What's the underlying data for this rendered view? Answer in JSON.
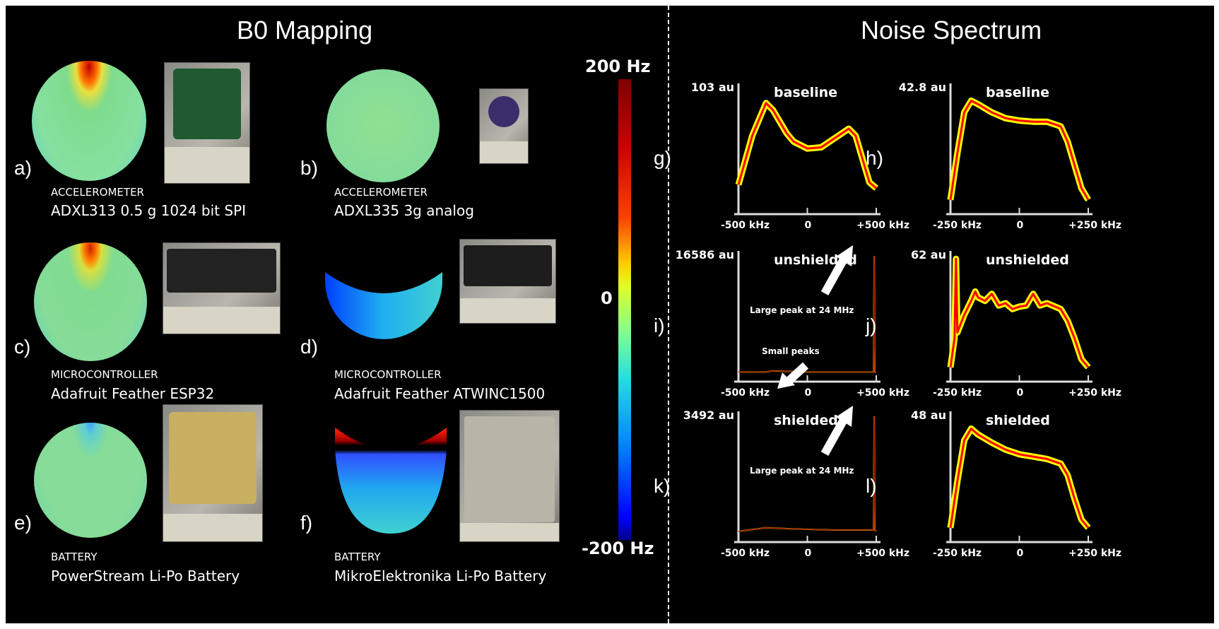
{
  "titles": {
    "left": "B0 Mapping",
    "right": "Noise Spectrum"
  },
  "colorbar": {
    "max": "200 Hz",
    "mid": "0",
    "min": "-200 Hz"
  },
  "panels": [
    {
      "label": "a)",
      "category": "ACCELEROMETER",
      "name": "ADXL313 0.5 g 1024 bit SPI"
    },
    {
      "label": "b)",
      "category": "ACCELEROMETER",
      "name": "ADXL335 3g analog"
    },
    {
      "label": "c)",
      "category": "MICROCONTROLLER",
      "name": "Adafruit Feather ESP32"
    },
    {
      "label": "d)",
      "category": "MICROCONTROLLER",
      "name": "Adafruit Feather ATWINC1500"
    },
    {
      "label": "e)",
      "category": "BATTERY",
      "name": "PowerStream Li-Po Battery"
    },
    {
      "label": "f)",
      "category": "BATTERY",
      "name": "MikroElektronika Li-Po Battery"
    }
  ],
  "colors": {
    "noise": "#ffff00",
    "mean": "#ff0000",
    "background": "#000000"
  },
  "chart_data": [
    {
      "type": "line",
      "label": "g)",
      "title": "baseline",
      "ymax_label": "103 au",
      "xticks": [
        "-500 kHz",
        "0",
        "+500 kHz"
      ],
      "xlim": [
        -500,
        500
      ],
      "x": [
        -500,
        -400,
        -300,
        -250,
        -200,
        -150,
        -100,
        0,
        100,
        200,
        300,
        350,
        400,
        450,
        500
      ],
      "values": [
        0.18,
        0.6,
        0.88,
        0.82,
        0.72,
        0.62,
        0.55,
        0.49,
        0.5,
        0.58,
        0.66,
        0.6,
        0.4,
        0.2,
        0.15
      ]
    },
    {
      "type": "line",
      "label": "h)",
      "title": "baseline",
      "ymax_label": "42.8 au",
      "xticks": [
        "-250 kHz",
        "0",
        "+250 kHz"
      ],
      "xlim": [
        -250,
        250
      ],
      "x": [
        -250,
        -225,
        -200,
        -175,
        -150,
        -100,
        -50,
        0,
        50,
        100,
        150,
        175,
        200,
        225,
        250
      ],
      "values": [
        0.05,
        0.45,
        0.8,
        0.9,
        0.87,
        0.8,
        0.75,
        0.73,
        0.72,
        0.72,
        0.68,
        0.55,
        0.35,
        0.15,
        0.05
      ]
    },
    {
      "type": "line",
      "label": "i)",
      "title": "unshielded",
      "ymax_label": "16586 au",
      "xticks": [
        "-500 kHz",
        "0",
        "+500 kHz"
      ],
      "xlim": [
        -500,
        500
      ],
      "annotations": [
        "Large peak at 24 MHz",
        "Small peaks"
      ],
      "x": [
        -500,
        -300,
        -250,
        0,
        300,
        480,
        485,
        490,
        500
      ],
      "values": [
        0.01,
        0.01,
        0.02,
        0.01,
        0.01,
        0.01,
        1.0,
        0.01,
        0.01
      ]
    },
    {
      "type": "line",
      "label": "j)",
      "title": "unshielded",
      "ymax_label": "62 au",
      "xticks": [
        "-250 kHz",
        "0",
        "+250 kHz"
      ],
      "xlim": [
        -250,
        250
      ],
      "x": [
        -250,
        -235,
        -230,
        -225,
        -200,
        -175,
        -160,
        -150,
        -125,
        -100,
        -75,
        -50,
        -25,
        0,
        25,
        50,
        75,
        100,
        150,
        175,
        200,
        225,
        250
      ],
      "values": [
        0.05,
        0.3,
        0.98,
        0.35,
        0.5,
        0.62,
        0.7,
        0.65,
        0.62,
        0.68,
        0.58,
        0.6,
        0.55,
        0.57,
        0.58,
        0.68,
        0.58,
        0.6,
        0.55,
        0.45,
        0.3,
        0.12,
        0.05
      ]
    },
    {
      "type": "line",
      "label": "k)",
      "title": "shielded",
      "ymax_label": "3492 au",
      "xticks": [
        "-500 kHz",
        "0",
        "+500 kHz"
      ],
      "xlim": [
        -500,
        500
      ],
      "annotations": [
        "Large peak at 24 MHz"
      ],
      "x": [
        -500,
        -300,
        -100,
        200,
        450,
        480,
        485,
        490,
        500
      ],
      "values": [
        0.02,
        0.05,
        0.04,
        0.03,
        0.03,
        0.03,
        1.0,
        0.03,
        0.02
      ]
    },
    {
      "type": "line",
      "label": "l)",
      "title": "shielded",
      "ymax_label": "48 au",
      "xticks": [
        "-250 kHz",
        "0",
        "+250 kHz"
      ],
      "xlim": [
        -250,
        250
      ],
      "x": [
        -250,
        -225,
        -200,
        -175,
        -150,
        -100,
        -50,
        0,
        50,
        100,
        150,
        175,
        200,
        225,
        250
      ],
      "values": [
        0.05,
        0.45,
        0.8,
        0.9,
        0.85,
        0.78,
        0.72,
        0.68,
        0.66,
        0.64,
        0.6,
        0.5,
        0.3,
        0.12,
        0.05
      ]
    }
  ]
}
